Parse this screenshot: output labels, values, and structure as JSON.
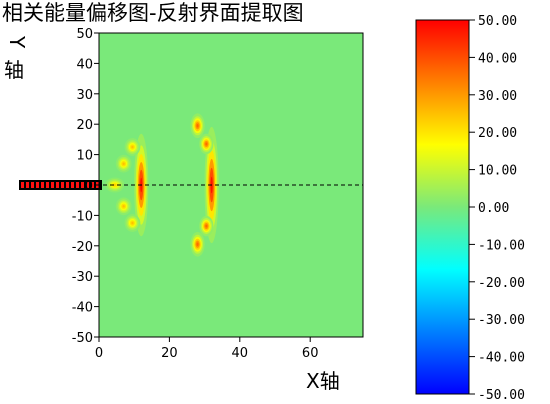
{
  "chart_data": {
    "type": "heatmap",
    "title": "相关能量偏移图-反射界面提取图",
    "xlabel": "X轴",
    "ylabel": "Y轴",
    "xlim": [
      0,
      75
    ],
    "ylim": [
      -50,
      50
    ],
    "x_ticks": [
      0,
      20,
      40,
      60
    ],
    "y_ticks": [
      50,
      40,
      30,
      20,
      10,
      0,
      -10,
      -20,
      -30,
      -40,
      -50
    ],
    "background_value": 0,
    "background_color": "#7ae97a",
    "colorbar": {
      "range": [
        -50,
        50
      ],
      "ticks": [
        "50.00",
        "40.00",
        "30.00",
        "20.00",
        "10.00",
        "0.00",
        "-10.00",
        "-20.00",
        "-30.00",
        "-40.00",
        "-50.00"
      ],
      "colors": [
        "#ff0000",
        "#ff8000",
        "#ffff00",
        "#7ae97a",
        "#00ffff",
        "#0080ff",
        "#0000ff"
      ]
    },
    "blobs": [
      {
        "x": 12,
        "y": 0,
        "sx": 0.9,
        "sy": 7.5,
        "value": 50
      },
      {
        "x": 32,
        "y": 0,
        "sx": 0.9,
        "sy": 8.5,
        "value": 50
      },
      {
        "x": 7,
        "y": 7,
        "sx": 1.0,
        "sy": 1.3,
        "value": 26
      },
      {
        "x": 7,
        "y": -7,
        "sx": 1.0,
        "sy": 1.3,
        "value": 26
      },
      {
        "x": 9.5,
        "y": 12.5,
        "sx": 1.0,
        "sy": 1.3,
        "value": 26
      },
      {
        "x": 9.5,
        "y": -12.5,
        "sx": 1.0,
        "sy": 1.3,
        "value": 26
      },
      {
        "x": 4.5,
        "y": 0,
        "sx": 1.2,
        "sy": 1.1,
        "value": 24
      },
      {
        "x": 28,
        "y": 19.5,
        "sx": 0.9,
        "sy": 1.8,
        "value": 38
      },
      {
        "x": 28,
        "y": -19.5,
        "sx": 0.9,
        "sy": 1.8,
        "value": 38
      },
      {
        "x": 30.5,
        "y": 13.5,
        "sx": 0.9,
        "sy": 1.5,
        "value": 38
      },
      {
        "x": 30.5,
        "y": -13.5,
        "sx": 0.9,
        "sy": 1.5,
        "value": 38
      }
    ],
    "source_bar": {
      "x_range": [
        -20,
        0
      ],
      "y": 0
    },
    "dashed_line": {
      "y": 0,
      "x_range": [
        0,
        75
      ]
    }
  }
}
